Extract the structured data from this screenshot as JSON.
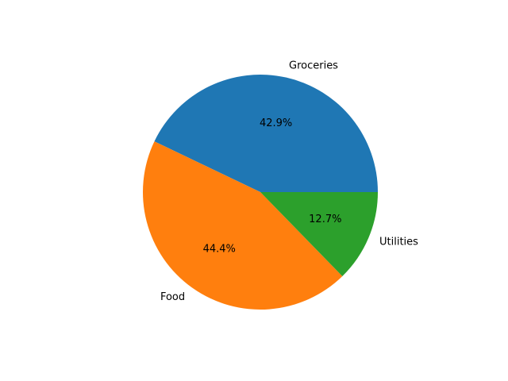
{
  "chart_data": {
    "type": "pie",
    "categories": [
      "Groceries",
      "Food",
      "Utilities"
    ],
    "values": [
      42.9,
      44.4,
      12.7
    ],
    "percent_labels": [
      "42.9%",
      "44.4%",
      "12.7%"
    ],
    "colors": [
      "#1f77b4",
      "#ff7f0e",
      "#2ca02c"
    ],
    "start_angle_deg": 0,
    "direction": "counterclockwise",
    "title": "",
    "legend": "none"
  }
}
